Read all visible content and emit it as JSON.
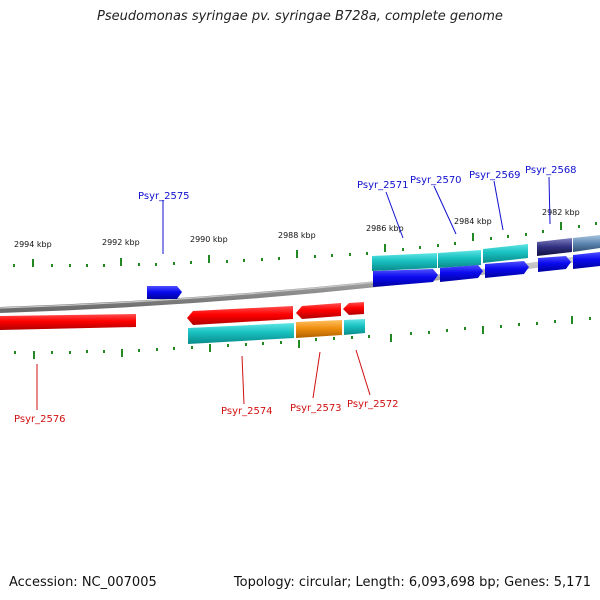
{
  "title": "Pseudomonas syringae pv. syringae B728a, complete genome",
  "footer": {
    "accession": "Accession: NC_007005",
    "summary": "Topology: circular; Length: 6,093,698 bp; Genes: 5,171"
  },
  "scale_labels": [
    "2994 kbp",
    "2992 kbp",
    "2990 kbp",
    "2988 kbp",
    "2986 kbp",
    "2984 kbp",
    "2982 kbp"
  ],
  "forward_genes": [
    "Psyr_2575",
    "Psyr_2571",
    "Psyr_2570",
    "Psyr_2569",
    "Psyr_2568"
  ],
  "reverse_genes": [
    "Psyr_2576",
    "Psyr_2574",
    "Psyr_2573",
    "Psyr_2572"
  ],
  "colors": {
    "forward_gene": "#1010e0",
    "reverse_gene": "#e01010",
    "cds": "#18c0c0",
    "rna": "#f09010",
    "tick": "#228822",
    "backbone": "#8a8a8a"
  }
}
